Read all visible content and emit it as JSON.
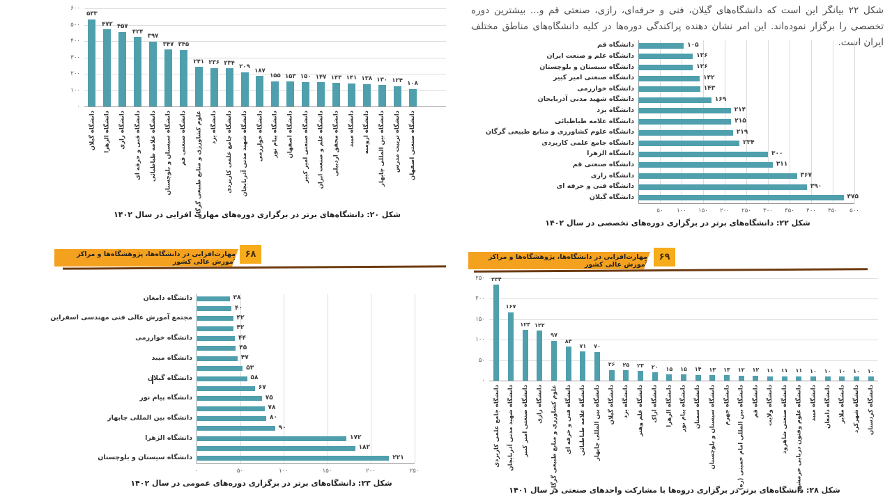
{
  "paragraph": {
    "text": "شکل ۲۲ بیانگر این است که دانشگاه‌های گیلان، فنی و حرفه‌ای، رازی، صنعتی قم و... بیشترین دوره تخصصی را برگزار نموده‌اند. این امر نشان دهنده پراکندگی دوره‌ها در کلیه دانشگاه‌های مناطق مختلف ایران است."
  },
  "banners": [
    {
      "text": "مهارت‌افزایی در دانشگاه‌ها، پژوهشگاه‌ها و مراکز آموزش عالی کشور",
      "page_number": "۶۸"
    },
    {
      "text": "مهارت‌افزایی در دانشگاه‌ها، پژوهشگاه‌ها و مراکز آموزش عالی کشور",
      "page_number": "۶۹"
    }
  ],
  "colors": {
    "bar": "#4f9fad",
    "grid": "#dcdcdc",
    "axis": "#9a9a9a",
    "banner": "#f4a11f",
    "banner_badge": "#f7ac1c",
    "banner_shadow": "#6d3b10"
  },
  "chart_data": [
    {
      "type": "bar",
      "orientation": "vertical",
      "title": "شکل ۲۰: دانشگاه‌های برتر در برگزاری دوره‌های مهارت افزایی در سال ۱۴۰۲",
      "categories": [
        "دانشگاه گیلان",
        "دانشگاه الزهرا",
        "دانشگاه رازی",
        "دانشگاه فنی و حرفه ای",
        "دانشگاه علامه طباطبائی",
        "دانشگاه سیستان و بلوچستان",
        "دانشگاه صنعتی قم",
        "علوم کشاورزی و منابع طبیعی گرگان",
        "دانشگاه یزد",
        "دانشگاه جامع علمی کاربردی",
        "دانشگاه شهید مدنی آذربایجان",
        "دانشگاه خوارزمی",
        "دانشگاه پیام نور",
        "دانشگاه اصفهان",
        "دانشگاه صنعتی امیر کبیر",
        "دانشگاه علم و صنعت ایران",
        "دانشگاه محقق اردبیلی",
        "دانشگاه میبد",
        "دانشگاه ارومیه",
        "دانشگاه بین المللی چابهار",
        "دانشگاه تربیت مدرس",
        "دانشگاه صنعتی اصفهان"
      ],
      "values": [
        533,
        472,
        457,
        424,
        397,
        347,
        345,
        241,
        236,
        234,
        209,
        187,
        155,
        153,
        150,
        147,
        143,
        141,
        138,
        130,
        124,
        108
      ],
      "axis": {
        "min": 0,
        "max": 600,
        "step": 100
      },
      "tick_labels": [
        "۰",
        "۱۰۰",
        "۲۰۰",
        "۳۰۰",
        "۴۰۰",
        "۵۰۰",
        "۶۰۰"
      ],
      "grid": true,
      "legend": false
    },
    {
      "type": "bar",
      "orientation": "horizontal",
      "title": "شکل ۲۲: دانشگاه‌های برتر در برگزاری دوره‌های  تخصصی در سال ۱۴۰۲",
      "categories": [
        "دانشگاه قم",
        "دانشگاه علم و صنعت ایران",
        "دانشگاه سیستان و بلوچستان",
        "دانشگاه صنعتی امیر کبیر",
        "دانشگاه خوارزمی",
        "دانشگاه شهید مدنی آذربایجان",
        "دانشگاه یزد",
        "دانشگاه علامه طباطبائی",
        "دانشگاه علوم کشاورزی و منابع طبیعی گرگان",
        "دانشگاه جامع علمی کاربردی",
        "دانشگاه الزهرا",
        "دانشگاه صنعتی قم",
        "دانشگاه رازی",
        "دانشگاه فنی و حرفه ای",
        "دانشگاه گیلان"
      ],
      "values": [
        105,
        126,
        126,
        142,
        143,
        169,
        214,
        215,
        219,
        234,
        300,
        311,
        367,
        390,
        475
      ],
      "axis": {
        "min": 0,
        "max": 500,
        "step": 50
      },
      "tick_labels": [
        "۵۰",
        "۱۰۰",
        "۱۵۰",
        "۲۰۰",
        "۲۵۰",
        "۳۰۰",
        "۳۵۰",
        "۴۰۰",
        "۴۵۰",
        "۵۰۰"
      ],
      "grid": true,
      "legend": false
    },
    {
      "type": "bar",
      "orientation": "horizontal",
      "title": "شکل ۲۳: دانشگاه‌های برتر در برگزاری دوره‌های عمومی در سال ۱۴۰۲",
      "categories": [
        "دانشگاه دامغان",
        "",
        "مجتمع آموزش عالی فنی مهندسی اسفراین",
        "",
        "دانشگاه خوارزمی",
        "",
        "دانشگاه میبد",
        "",
        "دانشگاه گیلان",
        "",
        "دانشگاه پیام نور",
        "",
        "دانشگاه بین المللی چابهار",
        "",
        "دانشگاه الزهرا",
        "",
        "دانشگاه سیستان و بلوچستان"
      ],
      "values": [
        38,
        40,
        42,
        42,
        44,
        45,
        47,
        53,
        58,
        67,
        75,
        78,
        80,
        90,
        172,
        182,
        221
      ],
      "axis": {
        "min": 0,
        "max": 250,
        "step": 50
      },
      "tick_labels": [
        "۰",
        "۵۰",
        "۱۰۰",
        "۱۵۰",
        "۲۰۰",
        "۲۵۰"
      ],
      "grid": true,
      "legend": false
    },
    {
      "type": "bar",
      "orientation": "vertical",
      "title": "شکل ۲۸: دانشگاه‌های برتر در برگزاری دروه‌ها با مشارکت واحدهای صنعتی در سال ۱۴۰۱",
      "categories": [
        "دانشگاه جامع علمی کاربردی",
        "دانشگاه شهید مدنی آذربایجان",
        "دانشگاه صنعتی امیر کبیر",
        "دانشگاه رازی",
        "علوم کشاورزی و منابع طبیعی گرگان",
        "دانشگاه فنی و حرفه ای",
        "دانشگاه علامه طباطبائی",
        "دانشگاه بین المللی چابهار",
        "دانشگاه گیلان",
        "دانشگاه یزد",
        "دانشگاه علم وهنر",
        "دانشگاه اراک",
        "دانشگاه الزهرا",
        "دانشگاه پیام نور",
        "دانشگاه سمنان",
        "دانشگاه سیستان و بلوچستان",
        "دانشگاه جهرم",
        "دانشگاه بین المللی امام خمینی (ره)",
        "دانشگاه قم",
        "دانشگاه ولایت",
        "دانشگاه صنعتی شاهرود",
        "دانشگاه علوم وفنون دریایی خرمشهر",
        "دانشگاه میبد",
        "دانشگاه دامغان",
        "دانشگاه ملایر",
        "دانشگاه شهرکرد",
        "دانشگاه کردستان"
      ],
      "values": [
        234,
        167,
        124,
        122,
        97,
        83,
        71,
        70,
        26,
        25,
        23,
        20,
        15,
        15,
        14,
        13,
        13,
        12,
        12,
        11,
        11,
        11,
        10,
        10,
        10,
        10,
        10
      ],
      "axis": {
        "min": 0,
        "max": 250,
        "step": 50
      },
      "tick_labels": [
        "۰",
        "۵۰",
        "۱۰۰",
        "۱۵۰",
        "۲۰۰",
        "۲۵۰"
      ],
      "grid": true,
      "legend": false
    }
  ]
}
